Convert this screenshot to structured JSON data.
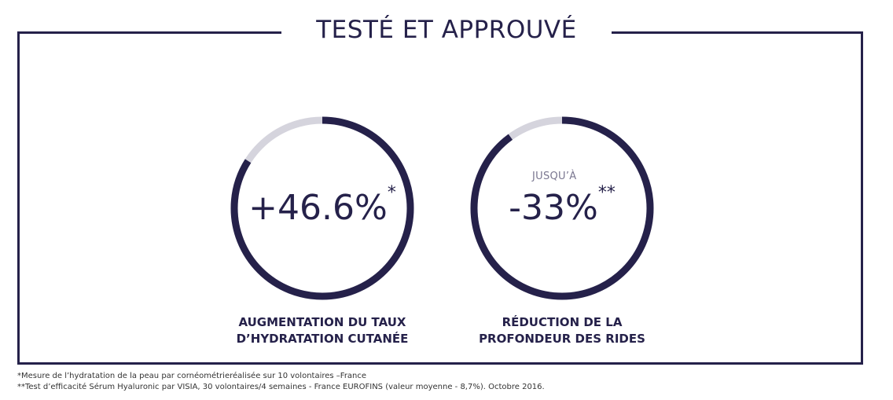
{
  "title": "TESTÉ ET APPROUVÉ",
  "stats": [
    {
      "prefix": "",
      "value": "+46.6%",
      "suffix": "*",
      "caption_line1": "AUGMENTATION DU TAUX",
      "caption_line2": "D’HYDRATATION CUTANÉE",
      "ring_fill_percent": 84
    },
    {
      "prefix": "JUSQU’À",
      "value": "-33%",
      "suffix": "**",
      "caption_line1": "RÉDUCTION DE LA",
      "caption_line2": "PROFONDEUR DES RIDES",
      "ring_fill_percent": 90
    }
  ],
  "footnotes": [
    "*Mesure de l’hydratation de la peau par cornéométrieréalisée sur 10 volontaires –France",
    "**Test d’efficacité Sérum Hyaluronic par VISIA, 30 volontaires/4 semaines - France EUROFINS (valeur moyenne - 8,7%). Octobre 2016."
  ],
  "colors": {
    "primary": "#25214a",
    "track": "#d5d4dd",
    "background": "#ffffff"
  }
}
